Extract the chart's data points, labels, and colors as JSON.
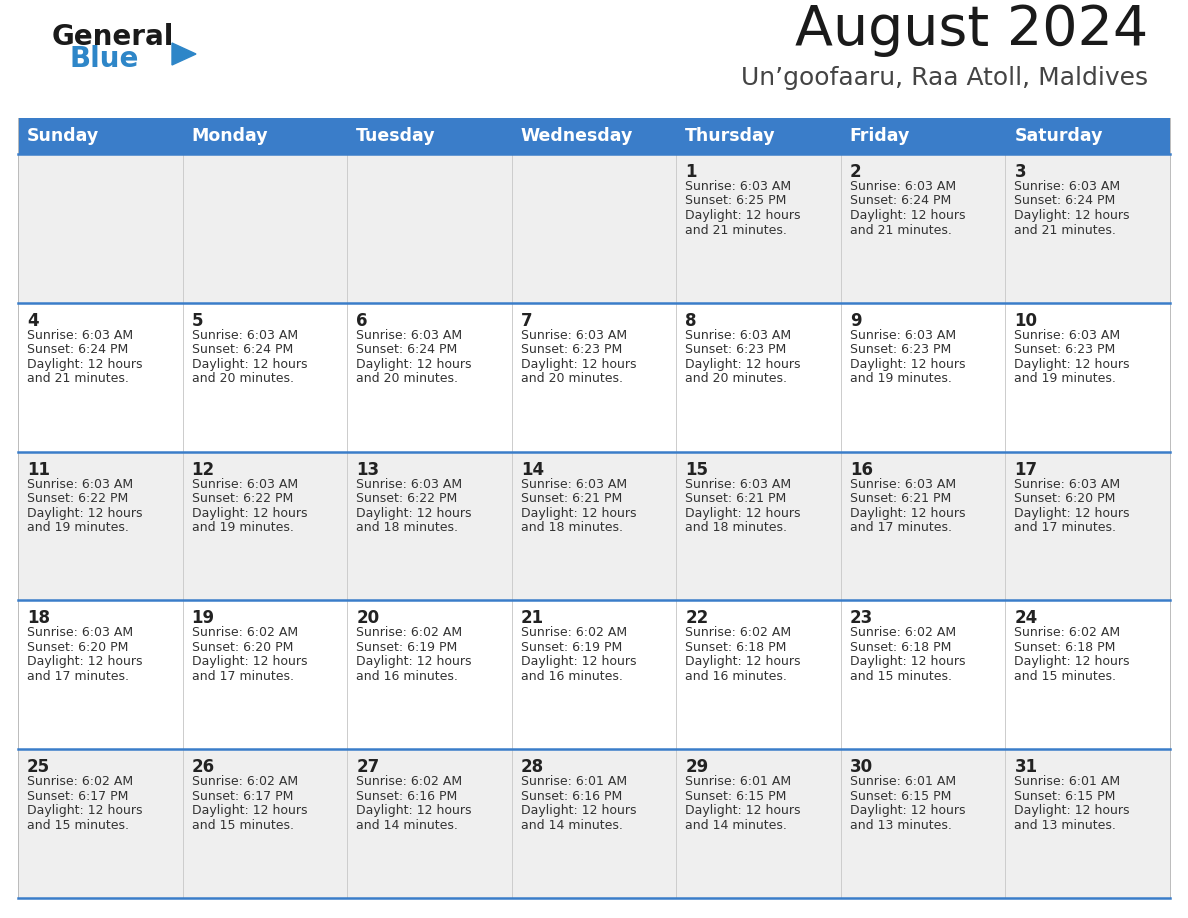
{
  "title": "August 2024",
  "subtitle": "Un’goofaaru, Raa Atoll, Maldives",
  "days_of_week": [
    "Sunday",
    "Monday",
    "Tuesday",
    "Wednesday",
    "Thursday",
    "Friday",
    "Saturday"
  ],
  "header_bg": "#3A7DC9",
  "header_text": "#FFFFFF",
  "row_bg_even": "#EFEFEF",
  "row_bg_odd": "#FFFFFF",
  "cell_text": "#333333",
  "separator_color": "#3A7DC9",
  "logo_general_color": "#1a1a1a",
  "logo_blue_color": "#2e86c8",
  "calendar": [
    [
      null,
      null,
      null,
      null,
      {
        "day": 1,
        "sunrise": "6:03 AM",
        "sunset": "6:25 PM",
        "daylight": "12 hours and 21 minutes"
      },
      {
        "day": 2,
        "sunrise": "6:03 AM",
        "sunset": "6:24 PM",
        "daylight": "12 hours and 21 minutes"
      },
      {
        "day": 3,
        "sunrise": "6:03 AM",
        "sunset": "6:24 PM",
        "daylight": "12 hours and 21 minutes"
      }
    ],
    [
      {
        "day": 4,
        "sunrise": "6:03 AM",
        "sunset": "6:24 PM",
        "daylight": "12 hours and 21 minutes"
      },
      {
        "day": 5,
        "sunrise": "6:03 AM",
        "sunset": "6:24 PM",
        "daylight": "12 hours and 20 minutes"
      },
      {
        "day": 6,
        "sunrise": "6:03 AM",
        "sunset": "6:24 PM",
        "daylight": "12 hours and 20 minutes"
      },
      {
        "day": 7,
        "sunrise": "6:03 AM",
        "sunset": "6:23 PM",
        "daylight": "12 hours and 20 minutes"
      },
      {
        "day": 8,
        "sunrise": "6:03 AM",
        "sunset": "6:23 PM",
        "daylight": "12 hours and 20 minutes"
      },
      {
        "day": 9,
        "sunrise": "6:03 AM",
        "sunset": "6:23 PM",
        "daylight": "12 hours and 19 minutes"
      },
      {
        "day": 10,
        "sunrise": "6:03 AM",
        "sunset": "6:23 PM",
        "daylight": "12 hours and 19 minutes"
      }
    ],
    [
      {
        "day": 11,
        "sunrise": "6:03 AM",
        "sunset": "6:22 PM",
        "daylight": "12 hours and 19 minutes"
      },
      {
        "day": 12,
        "sunrise": "6:03 AM",
        "sunset": "6:22 PM",
        "daylight": "12 hours and 19 minutes"
      },
      {
        "day": 13,
        "sunrise": "6:03 AM",
        "sunset": "6:22 PM",
        "daylight": "12 hours and 18 minutes"
      },
      {
        "day": 14,
        "sunrise": "6:03 AM",
        "sunset": "6:21 PM",
        "daylight": "12 hours and 18 minutes"
      },
      {
        "day": 15,
        "sunrise": "6:03 AM",
        "sunset": "6:21 PM",
        "daylight": "12 hours and 18 minutes"
      },
      {
        "day": 16,
        "sunrise": "6:03 AM",
        "sunset": "6:21 PM",
        "daylight": "12 hours and 17 minutes"
      },
      {
        "day": 17,
        "sunrise": "6:03 AM",
        "sunset": "6:20 PM",
        "daylight": "12 hours and 17 minutes"
      }
    ],
    [
      {
        "day": 18,
        "sunrise": "6:03 AM",
        "sunset": "6:20 PM",
        "daylight": "12 hours and 17 minutes"
      },
      {
        "day": 19,
        "sunrise": "6:02 AM",
        "sunset": "6:20 PM",
        "daylight": "12 hours and 17 minutes"
      },
      {
        "day": 20,
        "sunrise": "6:02 AM",
        "sunset": "6:19 PM",
        "daylight": "12 hours and 16 minutes"
      },
      {
        "day": 21,
        "sunrise": "6:02 AM",
        "sunset": "6:19 PM",
        "daylight": "12 hours and 16 minutes"
      },
      {
        "day": 22,
        "sunrise": "6:02 AM",
        "sunset": "6:18 PM",
        "daylight": "12 hours and 16 minutes"
      },
      {
        "day": 23,
        "sunrise": "6:02 AM",
        "sunset": "6:18 PM",
        "daylight": "12 hours and 15 minutes"
      },
      {
        "day": 24,
        "sunrise": "6:02 AM",
        "sunset": "6:18 PM",
        "daylight": "12 hours and 15 minutes"
      }
    ],
    [
      {
        "day": 25,
        "sunrise": "6:02 AM",
        "sunset": "6:17 PM",
        "daylight": "12 hours and 15 minutes"
      },
      {
        "day": 26,
        "sunrise": "6:02 AM",
        "sunset": "6:17 PM",
        "daylight": "12 hours and 15 minutes"
      },
      {
        "day": 27,
        "sunrise": "6:02 AM",
        "sunset": "6:16 PM",
        "daylight": "12 hours and 14 minutes"
      },
      {
        "day": 28,
        "sunrise": "6:01 AM",
        "sunset": "6:16 PM",
        "daylight": "12 hours and 14 minutes"
      },
      {
        "day": 29,
        "sunrise": "6:01 AM",
        "sunset": "6:15 PM",
        "daylight": "12 hours and 14 minutes"
      },
      {
        "day": 30,
        "sunrise": "6:01 AM",
        "sunset": "6:15 PM",
        "daylight": "12 hours and 13 minutes"
      },
      {
        "day": 31,
        "sunrise": "6:01 AM",
        "sunset": "6:15 PM",
        "daylight": "12 hours and 13 minutes"
      }
    ]
  ]
}
